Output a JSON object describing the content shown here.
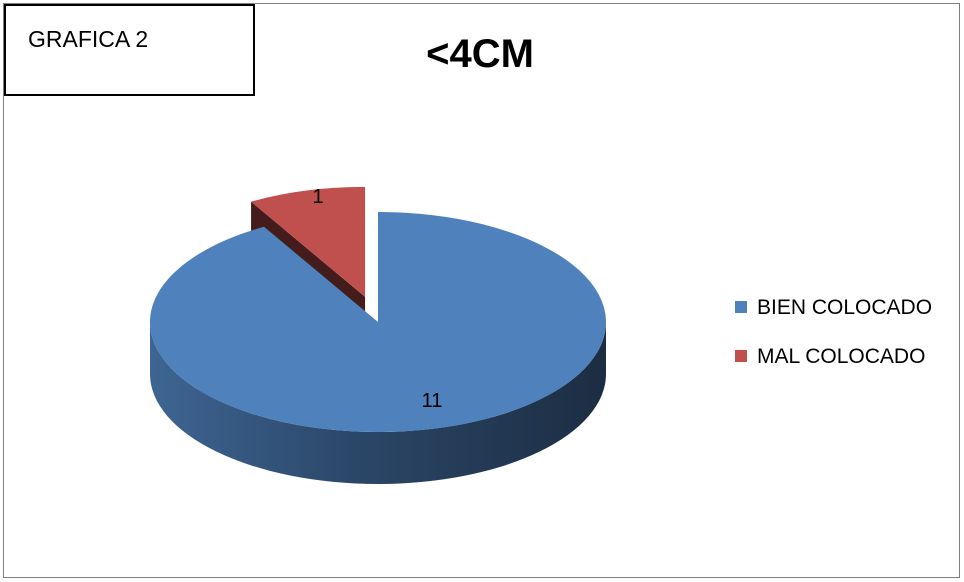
{
  "figure": {
    "caption": "GRAFICA 2"
  },
  "chart_data": {
    "type": "pie",
    "style": "3d-exploded",
    "title": "<4CM",
    "categories": [
      "BIEN COLOCADO",
      "MAL COLOCADO"
    ],
    "values": [
      11,
      1
    ],
    "data_labels": [
      "11",
      "1"
    ],
    "colors": [
      "#4f81bd",
      "#c0504d"
    ],
    "legend_position": "right"
  }
}
